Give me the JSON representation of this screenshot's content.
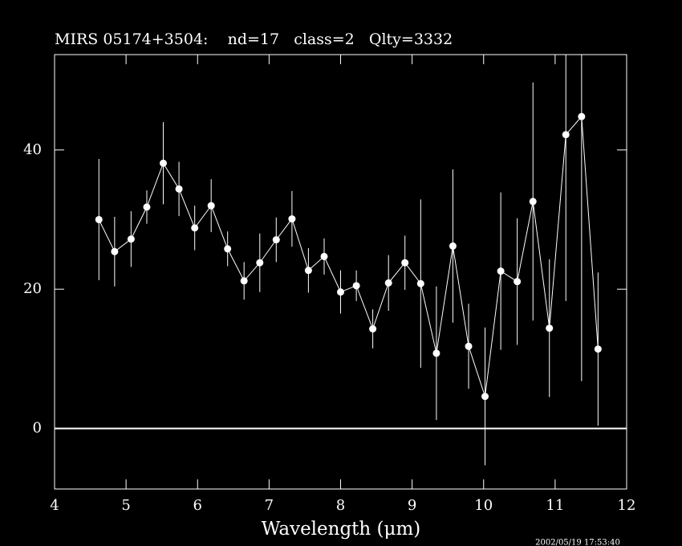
{
  "chart_data": {
    "type": "errorbar",
    "title": "MIRS 05174+3504:    nd=17   class=2   Qlty=3332",
    "x_label": "Wavelength (μm)",
    "timestamp": "2002/05/19 17:53:40",
    "x": [
      4.62,
      4.84,
      5.07,
      5.29,
      5.52,
      5.74,
      5.96,
      6.19,
      6.42,
      6.65,
      6.87,
      7.1,
      7.32,
      7.55,
      7.77,
      8.0,
      8.22,
      8.45,
      8.67,
      8.9,
      9.12,
      9.34,
      9.57,
      9.79,
      10.02,
      10.24,
      10.47,
      10.69,
      10.92,
      11.15,
      11.37,
      11.6
    ],
    "values": [
      30.0,
      25.4,
      27.2,
      31.8,
      38.1,
      34.4,
      28.8,
      32.0,
      25.8,
      21.2,
      23.8,
      27.1,
      30.1,
      22.7,
      24.7,
      19.6,
      20.5,
      14.3,
      20.9,
      23.8,
      20.8,
      10.8,
      26.2,
      11.8,
      4.6,
      22.6,
      21.1,
      32.6,
      14.4,
      42.2,
      44.8,
      11.4
    ],
    "errors": [
      8.7,
      5.0,
      4.0,
      2.4,
      5.9,
      3.9,
      3.2,
      3.8,
      2.5,
      2.7,
      4.2,
      3.2,
      4.0,
      3.2,
      2.6,
      3.1,
      2.2,
      2.8,
      4.0,
      3.9,
      12.1,
      9.6,
      11.0,
      6.1,
      9.9,
      11.3,
      9.1,
      17.1,
      9.9,
      23.9,
      38.0,
      11.0
    ],
    "color": "#ffffff",
    "xlim": [
      4,
      12
    ],
    "xticks": [
      4,
      5,
      6,
      7,
      8,
      9,
      10,
      11,
      12
    ],
    "ylim": [
      -8.7,
      53.7
    ],
    "yticks": [
      0,
      20,
      40
    ],
    "zero_line": true
  }
}
